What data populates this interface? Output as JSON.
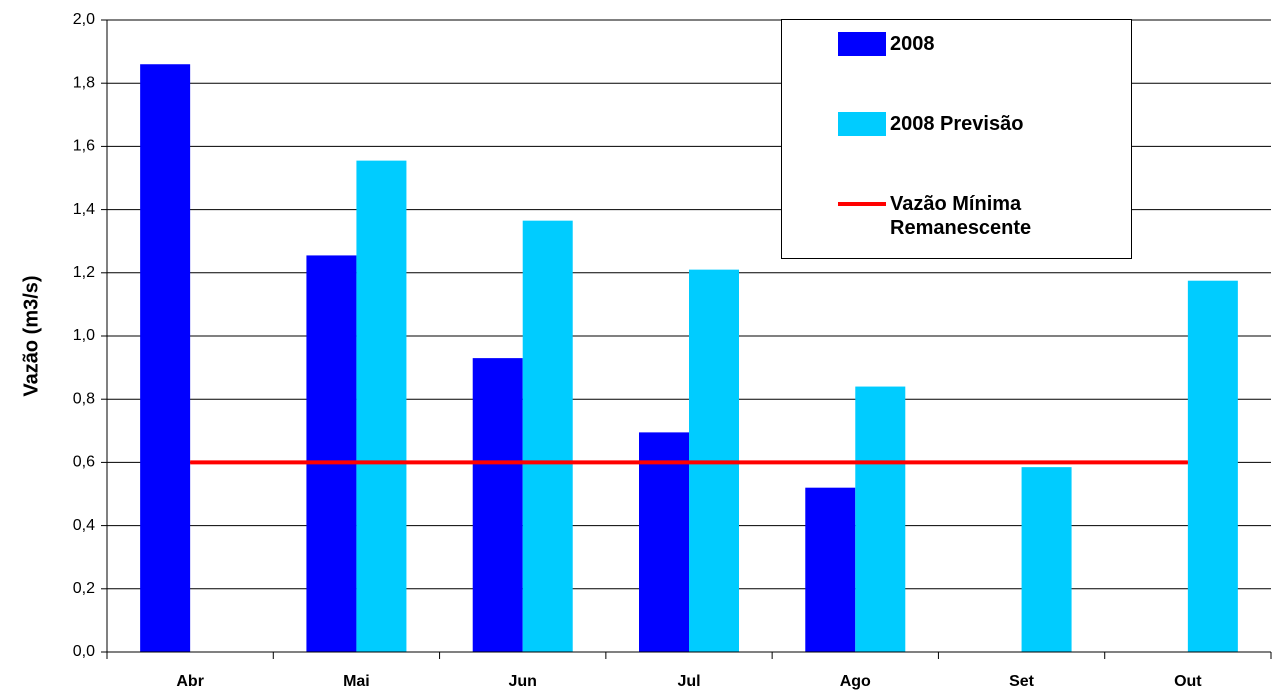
{
  "chart_data": {
    "type": "bar",
    "ylabel": "Vazão (m3/s)",
    "categories": [
      "Abr",
      "Mai",
      "Jun",
      "Jul",
      "Ago",
      "Set",
      "Out"
    ],
    "series": [
      {
        "name": "2008",
        "color": "#0000ff",
        "values": [
          1.86,
          1.255,
          0.93,
          0.695,
          0.52,
          null,
          null
        ]
      },
      {
        "name": "2008 Previsão",
        "color": "#00ccff",
        "values": [
          null,
          1.555,
          1.365,
          1.21,
          0.84,
          0.585,
          1.175
        ]
      },
      {
        "name": "Vazão Mínima Remanescente",
        "type": "line",
        "color": "#ff0000",
        "values": [
          0.6,
          0.6,
          0.6,
          0.6,
          0.6,
          0.6,
          0.6
        ]
      }
    ],
    "ylim": [
      0,
      2
    ],
    "yticks": [
      {
        "value": 0,
        "label": "0,0"
      },
      {
        "value": 0.2,
        "label": "0,2"
      },
      {
        "value": 0.4,
        "label": "0,4"
      },
      {
        "value": 0.6,
        "label": "0,6"
      },
      {
        "value": 0.8,
        "label": "0,8"
      },
      {
        "value": 1,
        "label": "1,0"
      },
      {
        "value": 1.2,
        "label": "1,2"
      },
      {
        "value": 1.4,
        "label": "1,4"
      },
      {
        "value": 1.6,
        "label": "1,6"
      },
      {
        "value": 1.8,
        "label": "1,8"
      },
      {
        "value": 2,
        "label": "2,0"
      }
    ],
    "grid": true,
    "legend": "upper right"
  }
}
